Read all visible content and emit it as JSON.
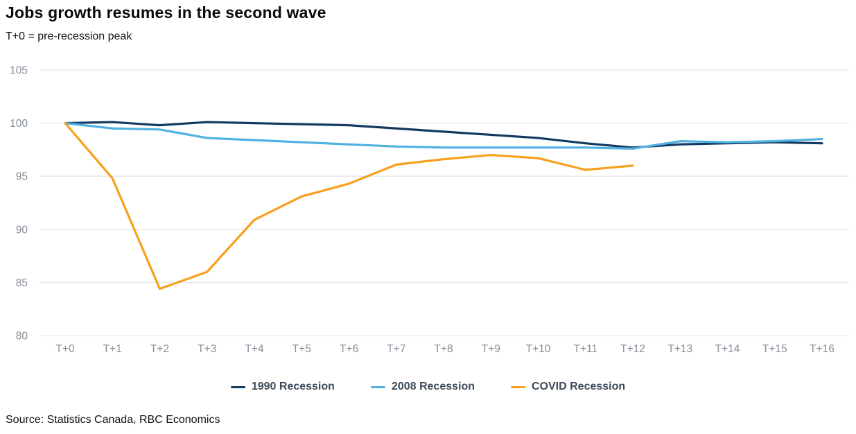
{
  "header": {
    "title": "Jobs growth resumes in the second wave",
    "subtitle": "T+0 = pre-recession peak"
  },
  "source": "Source: Statistics Canada, RBC Economics",
  "chart_data": {
    "type": "line",
    "categories": [
      "T+0",
      "T+1",
      "T+2",
      "T+3",
      "T+4",
      "T+5",
      "T+6",
      "T+7",
      "T+8",
      "T+9",
      "T+10",
      "T+11",
      "T+12",
      "T+13",
      "T+14",
      "T+15",
      "T+16"
    ],
    "series": [
      {
        "name": "1990 Recession",
        "color": "#123a60",
        "values": [
          100,
          100.1,
          99.8,
          100.1,
          100.0,
          99.9,
          99.8,
          99.5,
          99.2,
          98.9,
          98.6,
          98.1,
          97.7,
          98.0,
          98.1,
          98.2,
          98.1
        ]
      },
      {
        "name": "2008 Recession",
        "color": "#4fb0e2",
        "values": [
          100,
          99.5,
          99.4,
          98.6,
          98.4,
          98.2,
          98.0,
          97.8,
          97.7,
          97.7,
          97.7,
          97.7,
          97.6,
          98.3,
          98.2,
          98.3,
          98.5
        ]
      },
      {
        "name": "COVID Recession",
        "color": "#f8a01b",
        "values": [
          100,
          94.8,
          84.4,
          86.0,
          90.9,
          93.1,
          94.3,
          96.1,
          96.6,
          97.0,
          96.7,
          95.6,
          96.0
        ]
      }
    ],
    "title": "Jobs growth resumes in the second wave",
    "subtitle": "T+0 = pre-recession peak",
    "xlabel": "",
    "ylabel": "",
    "ylim": [
      80,
      105
    ],
    "yticks": [
      80,
      85,
      90,
      95,
      100,
      105
    ],
    "grid": "horizontal-only",
    "legend_position": "bottom",
    "grid_color": "#e4e6e9",
    "tick_label_color": "#878e99"
  }
}
